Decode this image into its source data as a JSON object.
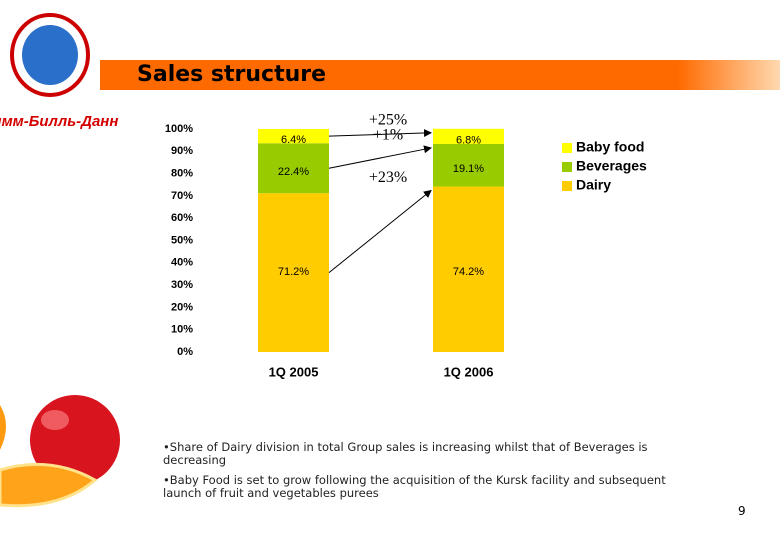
{
  "logo": "Вимм-Билль-Данн",
  "chart_data": {
    "type": "bar",
    "stacked": true,
    "title": "Sales structure",
    "categories": [
      "1Q 2005",
      "1Q 2006"
    ],
    "series": [
      {
        "name": "Dairy",
        "color": "#ffcc00",
        "values": [
          71.2,
          74.2
        ],
        "value_labels": [
          "71.2%",
          "74.2%"
        ]
      },
      {
        "name": "Beverages",
        "color": "#99cc00",
        "values": [
          22.4,
          19.1
        ],
        "value_labels": [
          "22.4%",
          "19.1%"
        ]
      },
      {
        "name": "Baby food",
        "color": "#ffff00",
        "values": [
          6.4,
          6.8
        ],
        "value_labels": [
          "6.4%",
          "6.8%"
        ]
      }
    ],
    "ylim": [
      0,
      100
    ],
    "yticks": [
      {
        "value": 0,
        "label": "0%"
      },
      {
        "value": 10,
        "label": "10%"
      },
      {
        "value": 20,
        "label": "20%"
      },
      {
        "value": 30,
        "label": "30%"
      },
      {
        "value": 40,
        "label": "40%"
      },
      {
        "value": 50,
        "label": "50%"
      },
      {
        "value": 60,
        "label": "60%"
      },
      {
        "value": 70,
        "label": "70%"
      },
      {
        "value": 80,
        "label": "80%"
      },
      {
        "value": 90,
        "label": "90%"
      },
      {
        "value": 100,
        "label": "100%"
      }
    ],
    "annotations": [
      "+25%",
      "+1%",
      "+23%"
    ]
  },
  "bullets": [
    "•Share of Dairy division in total Group sales is increasing whilst that of Beverages is decreasing",
    "•Baby Food is set to grow following the acquisition of the Kursk facility and subsequent launch of fruit and vegetables purees"
  ],
  "page_number": "9"
}
